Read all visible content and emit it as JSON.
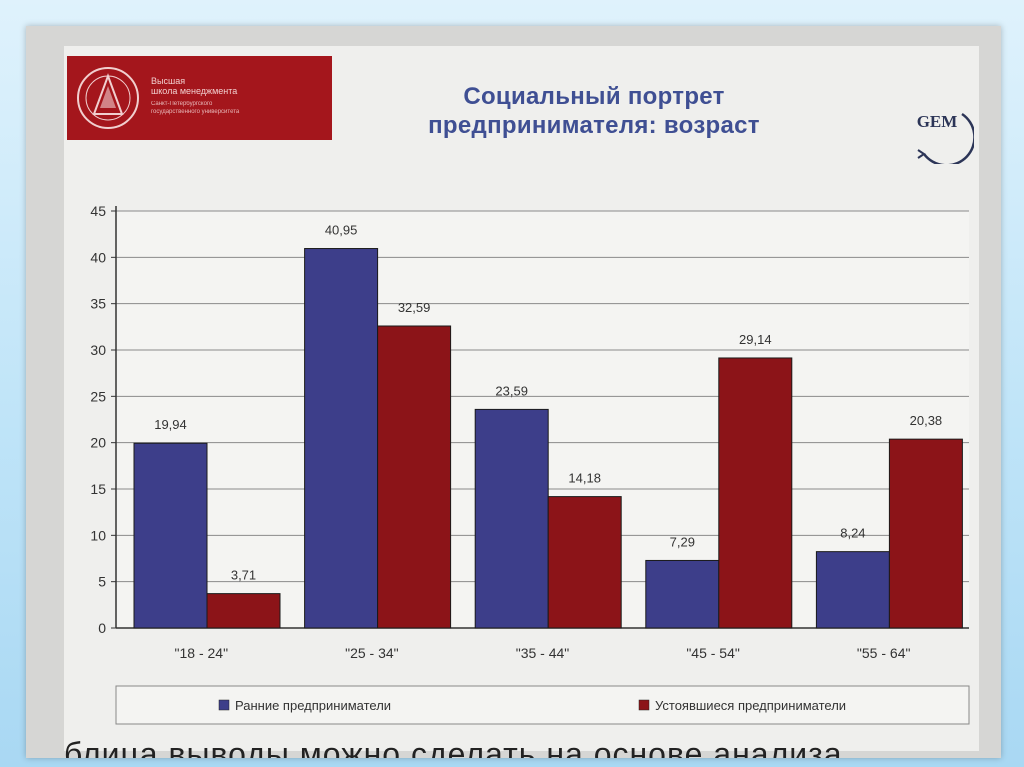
{
  "logo": {
    "line1": "Высшая",
    "line2": "школа менеджмента",
    "line3": "Санкт-Петербургского",
    "line4": "государственного университета"
  },
  "header": {
    "title_line1": "Социальный портрет",
    "title_line2": "предпринимателя: возраст",
    "gem_label": "GEM"
  },
  "chart_data": {
    "type": "bar",
    "categories": [
      "\"18 - 24\"",
      "\"25 - 34\"",
      "\"35 - 44\"",
      "\"45 - 54\"",
      "\"55 - 64\""
    ],
    "series": [
      {
        "name": "Ранние предприниматели",
        "values": [
          19.94,
          40.95,
          23.59,
          7.29,
          8.24
        ],
        "labels": [
          "19,94",
          "40,95",
          "23,59",
          "7,29",
          "8,24"
        ],
        "color": "#3d3e8a"
      },
      {
        "name": "Устоявшиеся предприниматели",
        "values": [
          3.71,
          32.59,
          14.18,
          29.14,
          20.38
        ],
        "labels": [
          "3,71",
          "32,59",
          "14,18",
          "29,14",
          "20,38"
        ],
        "color": "#8c1418"
      }
    ],
    "y_ticks": [
      "0",
      "5",
      "10",
      "15",
      "20",
      "25",
      "30",
      "35",
      "40",
      "45"
    ],
    "ylim": [
      0,
      45
    ],
    "grid": true,
    "legend_position": "bottom"
  },
  "footer": {
    "partial_text": "блица выводы можно сделать на основе анализа"
  }
}
